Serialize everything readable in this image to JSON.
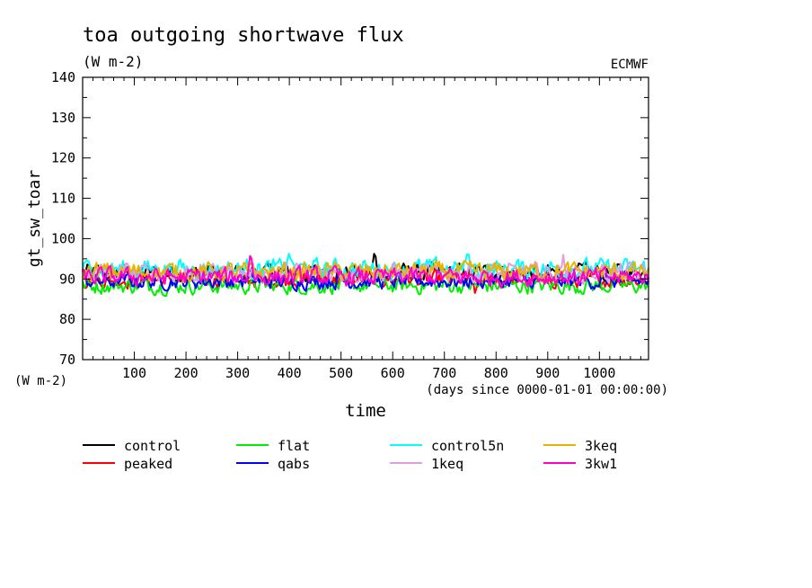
{
  "chart_data": {
    "type": "line",
    "title": "toa outgoing shortwave flux",
    "units": "(W m-2)",
    "source": "ECMWF",
    "ylabel": "gt_sw_toar",
    "yunits": "(W m-2)",
    "xlabel": "time",
    "xunits": "(days since 0000-01-01 00:00:00)",
    "xlim": [
      0,
      1095
    ],
    "ylim": [
      70,
      140
    ],
    "xticks": [
      100,
      200,
      300,
      400,
      500,
      600,
      700,
      800,
      900,
      1000
    ],
    "yticks": [
      70,
      80,
      90,
      100,
      110,
      120,
      130,
      140
    ],
    "grid": false,
    "legend_position": "bottom",
    "series": [
      {
        "name": "control",
        "color": "#000000",
        "mean": 91.5,
        "amp": 1.8,
        "peaks": [
          [
            565,
            97
          ]
        ]
      },
      {
        "name": "peaked",
        "color": "#ff0000",
        "mean": 89.8,
        "amp": 1.5,
        "peaks": [
          [
            760,
            86
          ]
        ]
      },
      {
        "name": "flat",
        "color": "#00ee00",
        "mean": 88.3,
        "amp": 1.5,
        "peaks": []
      },
      {
        "name": "qabs",
        "color": "#0000ff",
        "mean": 89.5,
        "amp": 1.5,
        "peaks": []
      },
      {
        "name": "control5n",
        "color": "#00ffff",
        "mean": 92.5,
        "amp": 1.9,
        "peaks": [
          [
            400,
            97
          ],
          [
            745,
            97
          ]
        ]
      },
      {
        "name": "1keq",
        "color": "#dda0dd",
        "mean": 91.5,
        "amp": 1.8,
        "peaks": [
          [
            930,
            96
          ]
        ]
      },
      {
        "name": "3keq",
        "color": "#e6b400",
        "mean": 91.8,
        "amp": 1.8,
        "peaks": []
      },
      {
        "name": "3kw1",
        "color": "#ff00cc",
        "mean": 90.5,
        "amp": 1.7,
        "peaks": [
          [
            325,
            97
          ]
        ]
      }
    ]
  }
}
